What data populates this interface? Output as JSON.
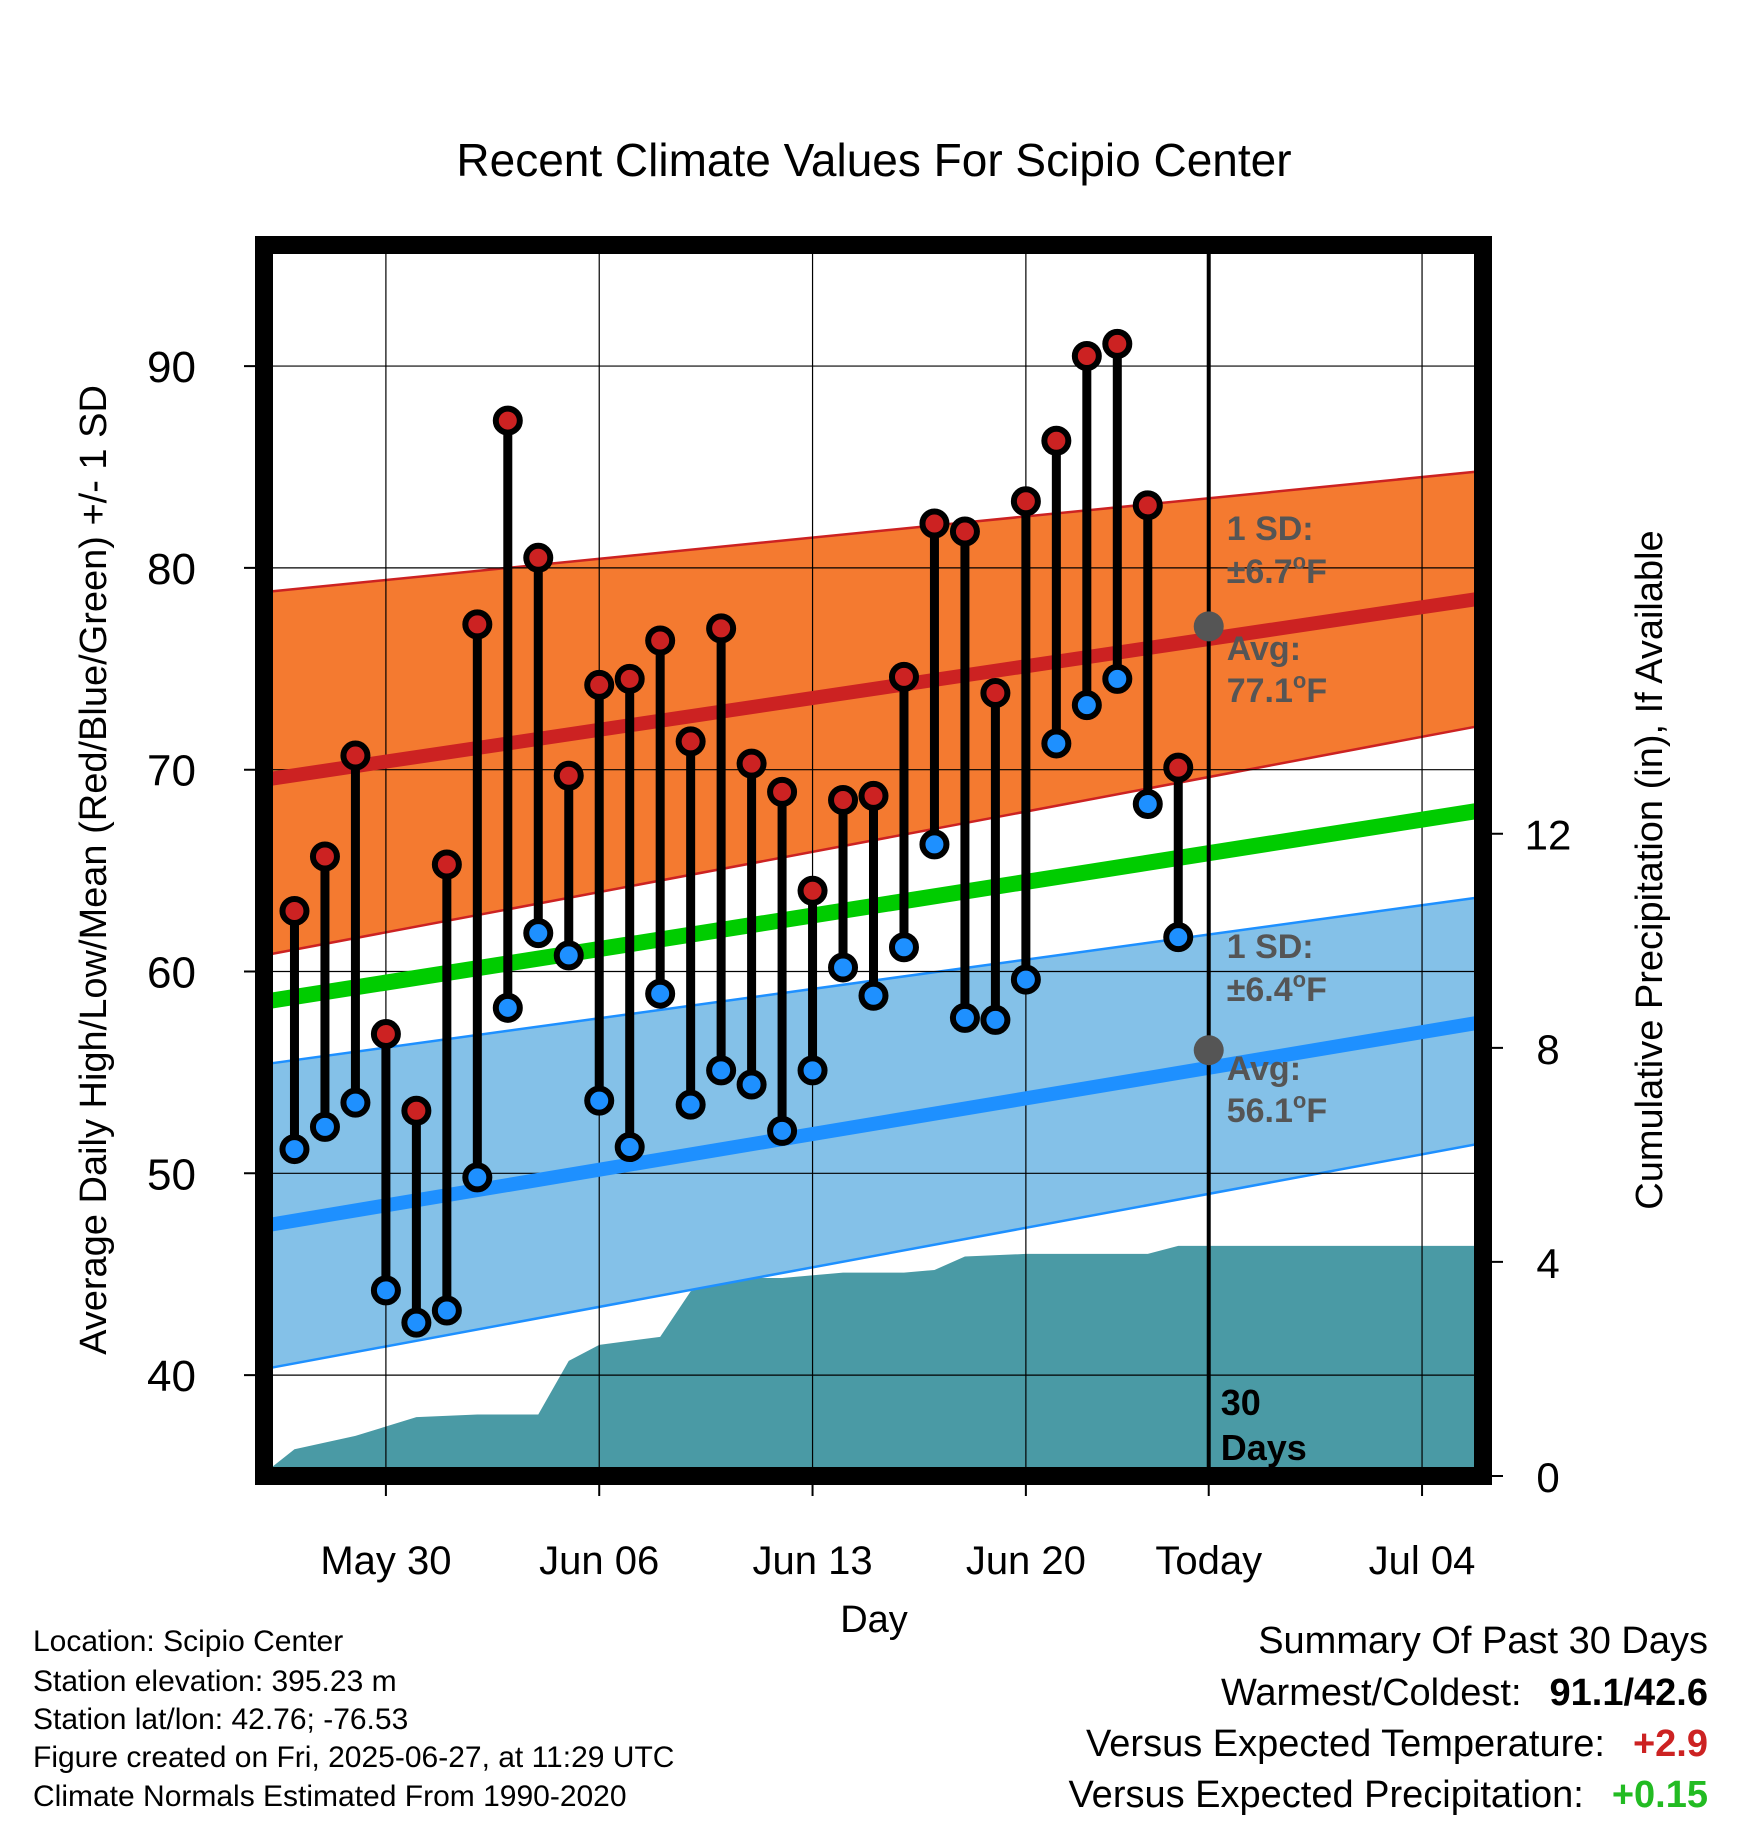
{
  "chart_data": {
    "type": "line",
    "title": "Recent Climate Values For Scipio Center",
    "xlabel": "Day",
    "ylabel_left": "Average Daily High/Low/Mean (Red/Blue/Green) +/- 1 SD",
    "ylabel_right": "Cumulative Precipitation (in), If Available",
    "ylim_left": [
      35,
      96
    ],
    "ylim_right": [
      0,
      23
    ],
    "left_ticks": [
      "40",
      "50",
      "60",
      "70",
      "80",
      "90"
    ],
    "right_ticks": [
      "0",
      "4",
      "8",
      "12"
    ],
    "x_ticks": [
      "May 30",
      "Jun 06",
      "Jun 13",
      "Jun 20",
      "Today",
      "Jul 04"
    ],
    "x_tick_days": [
      -27,
      -20,
      -13,
      -6,
      0,
      7
    ],
    "xlim": [
      -31,
      9
    ],
    "grid": true,
    "today_marker": {
      "line1": "30",
      "line2": "Days"
    },
    "observed": {
      "days": [
        -30,
        -29,
        -28,
        -27,
        -26,
        -25,
        -24,
        -23,
        -22,
        -21,
        -20,
        -19,
        -18,
        -17,
        -16,
        -15,
        -14,
        -13,
        -12,
        -11,
        -10,
        -9,
        -8,
        -7,
        -6,
        -5,
        -4,
        -3,
        -2,
        -1
      ],
      "high": [
        63.0,
        65.7,
        70.7,
        56.9,
        53.1,
        65.3,
        77.2,
        87.3,
        80.5,
        69.7,
        74.2,
        74.5,
        76.4,
        71.4,
        77.0,
        70.3,
        68.9,
        64.0,
        68.5,
        68.7,
        74.6,
        82.2,
        81.8,
        73.8,
        83.3,
        86.3,
        90.5,
        91.1,
        83.1,
        70.1
      ],
      "low": [
        51.2,
        52.3,
        53.5,
        44.2,
        42.6,
        43.2,
        49.8,
        58.2,
        61.9,
        60.8,
        53.6,
        51.3,
        58.9,
        53.4,
        55.1,
        54.4,
        52.1,
        55.1,
        60.2,
        58.8,
        61.2,
        66.3,
        57.7,
        57.6,
        59.6,
        71.3,
        73.2,
        74.5,
        68.3,
        61.7
      ]
    },
    "normal_high": {
      "days": [
        -31,
        9
      ],
      "mean": [
        69.5,
        78.5
      ],
      "sd_upper": [
        78.8,
        84.8
      ],
      "sd_lower": [
        60.8,
        72.2
      ]
    },
    "normal_low": {
      "days": [
        -31,
        9
      ],
      "mean": [
        47.4,
        57.5
      ],
      "sd_upper": [
        55.4,
        63.7
      ],
      "sd_lower": [
        40.3,
        51.5
      ]
    },
    "normal_mean": {
      "days": [
        -31,
        9
      ],
      "mean": [
        58.5,
        68.0
      ]
    },
    "cumulative_precip": {
      "days": [
        -31,
        -30,
        -28,
        -26,
        -24,
        -22,
        -21,
        -20,
        -18,
        -17,
        -16,
        -14,
        -12,
        -10,
        -9,
        -8,
        -6,
        -4,
        -2,
        -1,
        0,
        9
      ],
      "values": [
        0.05,
        0.5,
        0.75,
        1.1,
        1.15,
        1.15,
        2.15,
        2.45,
        2.6,
        3.45,
        3.7,
        3.7,
        3.8,
        3.8,
        3.85,
        4.1,
        4.15,
        4.15,
        4.15,
        4.3,
        4.3,
        4.3
      ]
    },
    "annotations": {
      "high_sd_line1": "1 SD:",
      "high_sd_line2": "±6.7",
      "high_avg_line1": "Avg:",
      "high_avg_line2": "77.1",
      "high_avg_value": 77.1,
      "low_sd_line1": "1 SD:",
      "low_sd_line2": "±6.4",
      "low_avg_line1": "Avg:",
      "low_avg_line2": "56.1",
      "low_avg_value": 56.1,
      "unit_sup": "o",
      "unit_letter": "F"
    },
    "colors": {
      "high_point": "#cc2222",
      "low_point": "#1e90ff",
      "high_band": "#f47a30",
      "high_line": "#cc2222",
      "low_band": "#84c1e8",
      "low_line": "#1e90ff",
      "mean_line": "#00cc00",
      "precip": "#4a9aa5",
      "annotation": "#555555",
      "today_dot": "#555555"
    }
  },
  "info": {
    "location": "Location: Scipio Center",
    "elevation": "Station elevation: 395.23 m",
    "latlon": "Station lat/lon: 42.76; -76.53",
    "created": "Figure created on Fri, 2025-06-27, at 11:29 UTC",
    "normals": "Climate Normals Estimated From 1990-2020"
  },
  "summary": {
    "title": "Summary Of Past 30 Days",
    "warmest_label": "Warmest/Coldest:",
    "warmest_value": "91.1/42.6",
    "temp_label": "Versus Expected Temperature:",
    "temp_value": "+2.9",
    "temp_color": "#cc2222",
    "precip_label": "Versus Expected Precipitation:",
    "precip_value": "+0.15",
    "precip_color": "#22bb22"
  }
}
